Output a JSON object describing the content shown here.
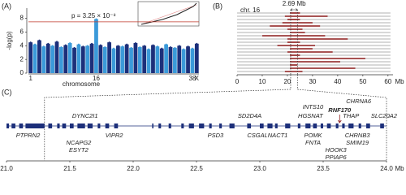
{
  "figure_labels": [
    "(A)",
    "(B)",
    "(C)"
  ],
  "chart_data": [
    {
      "type": "manhattan",
      "xlabel": "chromosome",
      "ylabel": "-log(p)",
      "annotation": "p = 3.25 × 10⁻⁸",
      "threshold": 7.5,
      "threshold_color": "#c0392b",
      "categories": [
        "1",
        null,
        null,
        null,
        null,
        null,
        null,
        null,
        null,
        null,
        null,
        null,
        null,
        null,
        null,
        "16",
        null,
        null,
        null,
        null,
        null,
        null,
        null,
        null,
        null,
        null,
        null,
        null,
        null,
        null,
        null,
        null,
        null,
        null,
        null,
        null,
        null,
        "38",
        "X"
      ],
      "values": [
        4.5,
        4.2,
        4.8,
        3.9,
        4.3,
        4.0,
        4.6,
        3.8,
        4.1,
        4.4,
        3.7,
        4.2,
        3.9,
        4.0,
        4.3,
        7.9,
        4.1,
        3.8,
        4.5,
        3.6,
        4.0,
        3.9,
        4.2,
        3.7,
        4.4,
        3.8,
        4.0,
        3.5,
        4.1,
        3.9,
        3.6,
        4.2,
        3.8,
        3.7,
        4.0,
        3.5,
        3.9,
        3.6,
        4.3
      ],
      "colors": [
        "#1c2f7a",
        "#3b9ad9"
      ],
      "ylim": [
        0,
        9.5
      ],
      "yticks": [
        0,
        2,
        4,
        6,
        8
      ]
    },
    {
      "type": "segments",
      "title": "chr. 16",
      "annotation": "2.69 Mb",
      "region": [
        21.3,
        24.0
      ],
      "chromosome_length": 61,
      "segments": [
        [
          21,
          25
        ],
        [
          19,
          36
        ],
        [
          20,
          25
        ],
        [
          18,
          30
        ],
        [
          13,
          33
        ],
        [
          20,
          26
        ],
        [
          21,
          27
        ],
        [
          10,
          35
        ],
        [
          20,
          44
        ],
        [
          20,
          25
        ],
        [
          16,
          31
        ],
        [
          21,
          30
        ],
        [
          20,
          38
        ],
        [
          21,
          25
        ],
        [
          21,
          51
        ],
        [
          21,
          41
        ],
        [
          21,
          24
        ],
        [
          21,
          47
        ],
        [
          19,
          26
        ]
      ],
      "color": "#8b1a1a",
      "xlabel": "Mb",
      "xlim": [
        0,
        62
      ],
      "xticks": [
        0,
        10,
        20,
        30,
        40,
        50,
        60
      ]
    },
    {
      "type": "genes",
      "xlabel": "Mb",
      "xlim": [
        21.0,
        24.0
      ],
      "xticks": [
        {
          "value": 21,
          "label": "21.0"
        },
        21.5,
        {
          "value": 22,
          "label": "22.0"
        },
        22.5,
        {
          "value": 23,
          "label": "23.0"
        },
        23.5,
        {
          "value": 24,
          "label": "24.0"
        }
      ],
      "color": "#1c2f7a",
      "highlight": "RNF170",
      "highlight_color": "#8b1a1a",
      "blocks": [
        [
          21.0,
          21.02
        ],
        [
          21.04,
          21.07
        ],
        [
          21.1,
          21.13
        ],
        [
          21.15,
          21.3
        ],
        [
          21.33,
          21.36
        ],
        [
          21.4,
          21.42
        ],
        [
          21.44,
          21.47
        ],
        [
          21.5,
          21.53
        ],
        [
          21.56,
          21.62
        ],
        [
          21.64,
          21.68
        ],
        [
          21.72,
          21.74
        ],
        [
          21.78,
          21.81
        ],
        [
          21.85,
          21.88
        ],
        [
          22.15,
          22.16
        ],
        [
          22.2,
          22.22
        ],
        [
          22.28,
          22.3
        ],
        [
          22.38,
          22.4
        ],
        [
          22.44,
          22.48
        ],
        [
          22.52,
          22.56
        ],
        [
          22.6,
          22.62
        ],
        [
          22.68,
          22.7
        ],
        [
          22.76,
          22.8
        ],
        [
          22.9,
          22.93
        ],
        [
          23.0,
          23.03
        ],
        [
          23.06,
          23.1
        ],
        [
          23.12,
          23.14
        ],
        [
          23.2,
          23.24
        ],
        [
          23.3,
          23.32
        ],
        [
          23.36,
          23.4
        ],
        [
          23.42,
          23.45
        ],
        [
          23.48,
          23.5
        ],
        [
          23.53,
          23.56
        ],
        [
          23.6,
          23.62
        ],
        [
          23.65,
          23.67
        ],
        [
          23.7,
          23.74
        ],
        [
          23.78,
          23.8
        ],
        [
          23.84,
          23.87
        ],
        [
          23.95,
          23.98
        ]
      ],
      "genes": [
        {
          "name": "PTPRN2",
          "pos": 21.17
        },
        {
          "name": "NCAPG2",
          "pos": 21.57
        },
        {
          "name": "ESYT2",
          "pos": 21.57
        },
        {
          "name": "DYNC2I1",
          "pos": 21.62
        },
        {
          "name": "VIPR2",
          "pos": 21.85
        },
        {
          "name": "PSD3",
          "pos": 22.65
        },
        {
          "name": "SD2D4A",
          "pos": 22.92
        },
        {
          "name": "CSGALNACT1",
          "pos": 23.06
        },
        {
          "name": "INTS10",
          "pos": 23.42
        },
        {
          "name": "HGSNAT",
          "pos": 23.4
        },
        {
          "name": "RNF170",
          "pos": 23.63
        },
        {
          "name": "CHRNA6",
          "pos": 23.78
        },
        {
          "name": "THAP",
          "pos": 23.72
        },
        {
          "name": "POMK",
          "pos": 23.42
        },
        {
          "name": "FNTA",
          "pos": 23.42
        },
        {
          "name": "HOOK3",
          "pos": 23.6
        },
        {
          "name": "PPIAP6",
          "pos": 23.6
        },
        {
          "name": "CHRNB3",
          "pos": 23.77
        },
        {
          "name": "SMIM19",
          "pos": 23.77
        },
        {
          "name": "SLC20A2",
          "pos": 23.98
        }
      ]
    }
  ]
}
